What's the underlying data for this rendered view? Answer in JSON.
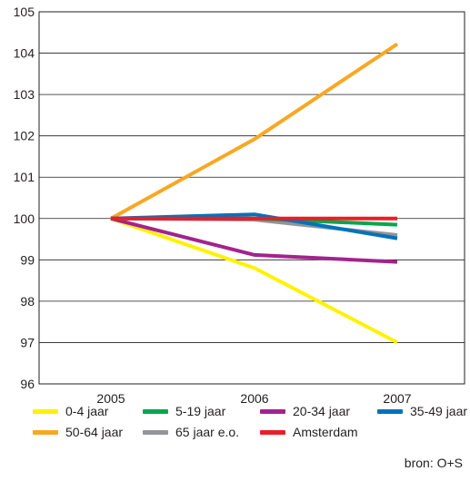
{
  "chart_data": {
    "type": "line",
    "title": "",
    "xlabel": "",
    "ylabel": "",
    "categories": [
      "2005",
      "2006",
      "2007"
    ],
    "ylim": [
      96,
      105
    ],
    "yticks": [
      "96",
      "97",
      "98",
      "99",
      "100",
      "101",
      "102",
      "103",
      "104",
      "105"
    ],
    "grid": "horizontal",
    "legend_position": "bottom",
    "series": [
      {
        "name": "0-4 jaar",
        "color": "#fff200",
        "values": [
          100,
          98.8,
          97.0
        ]
      },
      {
        "name": "5-19 jaar",
        "color": "#00a651",
        "values": [
          100,
          100.0,
          99.85
        ]
      },
      {
        "name": "20-34 jaar",
        "color": "#a3238e",
        "values": [
          100,
          99.12,
          98.95
        ]
      },
      {
        "name": "35-49 jaar",
        "color": "#0072bc",
        "values": [
          100,
          100.1,
          99.52
        ]
      },
      {
        "name": "50-64 jaar",
        "color": "#f7a823",
        "values": [
          100,
          101.92,
          104.22
        ]
      },
      {
        "name": "65 jaar e.o.",
        "color": "#939598",
        "values": [
          100,
          99.97,
          99.6
        ]
      },
      {
        "name": "Amsterdam",
        "color": "#ed1c24",
        "values": [
          100,
          100.0,
          100.0
        ]
      }
    ]
  },
  "source_label": "bron: O+S"
}
